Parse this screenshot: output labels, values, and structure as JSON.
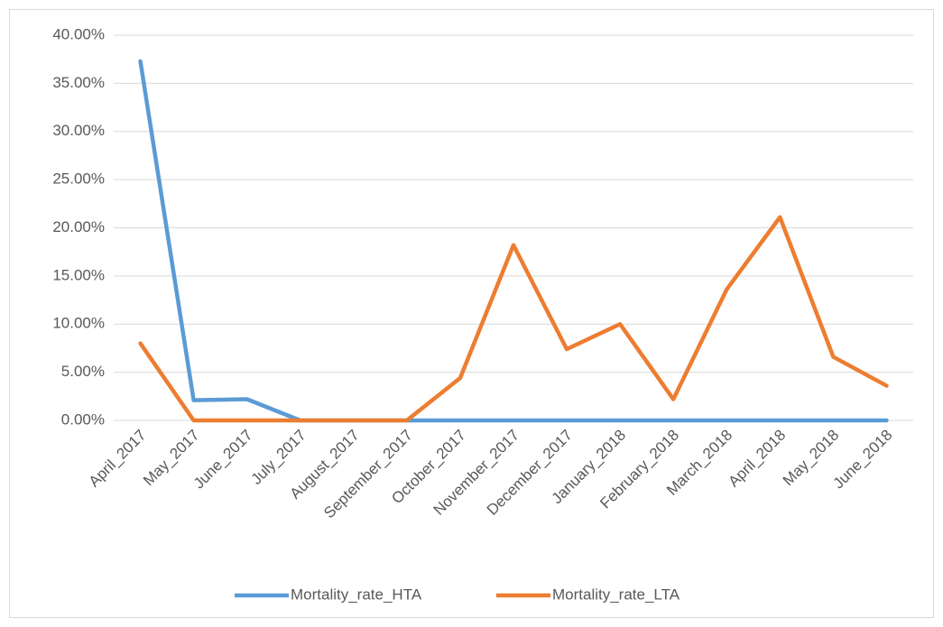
{
  "chart_data": {
    "type": "line",
    "categories": [
      "April_2017",
      "May_2017",
      "June_2017",
      "July_2017",
      "August_2017",
      "September_2017",
      "October_2017",
      "November_2017",
      "December_2017",
      "January_2018",
      "February_2018",
      "March_2018",
      "April_2018",
      "May_2018",
      "June_2018"
    ],
    "series": [
      {
        "name": "Mortality_rate_HTA",
        "color": "#5b9bd5",
        "values": [
          37.3,
          2.1,
          2.2,
          0,
          0,
          0,
          0,
          0,
          0,
          0,
          0,
          0,
          0,
          0,
          0
        ]
      },
      {
        "name": "Mortality_rate_LTA",
        "color": "#ed7d31",
        "values": [
          8.0,
          0,
          0,
          0,
          0,
          0,
          4.4,
          18.2,
          7.4,
          10.0,
          2.2,
          13.6,
          21.1,
          6.6,
          3.6
        ]
      }
    ],
    "ylim": [
      0,
      40
    ],
    "yticks": [
      {
        "value": 0,
        "label": "0.00%"
      },
      {
        "value": 5,
        "label": "5.00%"
      },
      {
        "value": 10,
        "label": "10.00%"
      },
      {
        "value": 15,
        "label": "15.00%"
      },
      {
        "value": 20,
        "label": "20.00%"
      },
      {
        "value": 25,
        "label": "25.00%"
      },
      {
        "value": 30,
        "label": "30.00%"
      },
      {
        "value": 35,
        "label": "35.00%"
      },
      {
        "value": 40,
        "label": "40.00%"
      }
    ],
    "grid": true,
    "legend": "bottom"
  }
}
